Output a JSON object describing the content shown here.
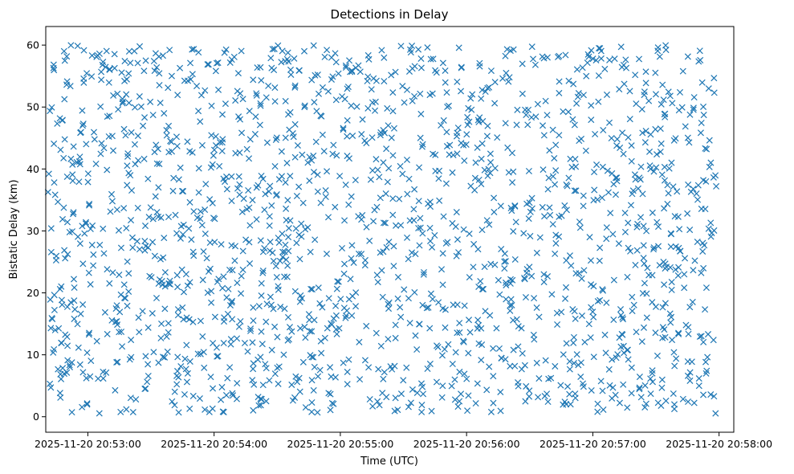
{
  "chart_data": {
    "type": "scatter",
    "title": "Detections in Delay",
    "xlabel": "Time (UTC)",
    "ylabel": "Bistatic Delay (km)",
    "x_ticks": [
      "2025-11-20 20:53:00",
      "2025-11-20 20:54:00",
      "2025-11-20 20:55:00",
      "2025-11-20 20:56:00",
      "2025-11-20 20:57:00",
      "2025-11-20 20:58:00"
    ],
    "y_ticks": [
      0,
      10,
      20,
      30,
      40,
      50,
      60
    ],
    "xlim": [
      "2025-11-20 20:52:40",
      "2025-11-20 20:58:07"
    ],
    "ylim": [
      -2.5,
      63
    ],
    "x_start": "2025-11-20 20:52:41",
    "x_end": "2025-11-20 20:57:59",
    "y_min": 0.5,
    "y_max": 60,
    "point_count": 1800,
    "marker": "x",
    "series_color": "#1f77b4",
    "grid": false,
    "legend": "none"
  }
}
